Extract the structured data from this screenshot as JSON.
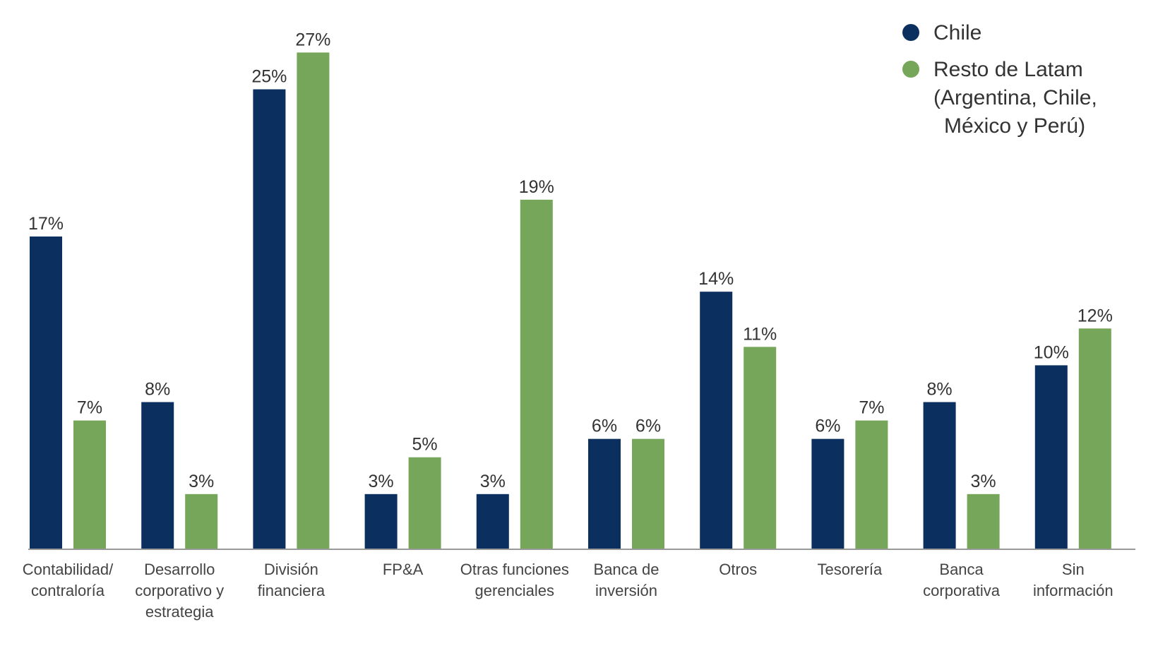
{
  "chart_data": {
    "type": "bar",
    "title": "",
    "xlabel": "",
    "ylabel": "",
    "ylim": [
      0,
      27
    ],
    "grid": false,
    "legend_position": "top-right",
    "value_suffix": "%",
    "categories": [
      [
        "Contabilidad/",
        "contraloría"
      ],
      [
        "Desarrollo",
        "corporativo y",
        "estrategia"
      ],
      [
        "División",
        "financiera"
      ],
      [
        "FP&A"
      ],
      [
        "Otras funciones",
        "gerenciales"
      ],
      [
        "Banca de",
        "inversión"
      ],
      [
        "Otros"
      ],
      [
        "Tesorería"
      ],
      [
        "Banca",
        "corporativa"
      ],
      [
        "Sin",
        "información"
      ]
    ],
    "series": [
      {
        "name": "Chile",
        "color": "#0b2f5e",
        "values": [
          17,
          8,
          25,
          3,
          3,
          6,
          14,
          6,
          8,
          10
        ]
      },
      {
        "name_lines": [
          "Resto de Latam",
          "(Argentina, Chile,",
          "México y Perú)"
        ],
        "color": "#75a65a",
        "values": [
          7,
          3,
          27,
          5,
          19,
          6,
          11,
          7,
          3,
          12
        ]
      }
    ]
  },
  "colors": {
    "axis": "#999999"
  }
}
